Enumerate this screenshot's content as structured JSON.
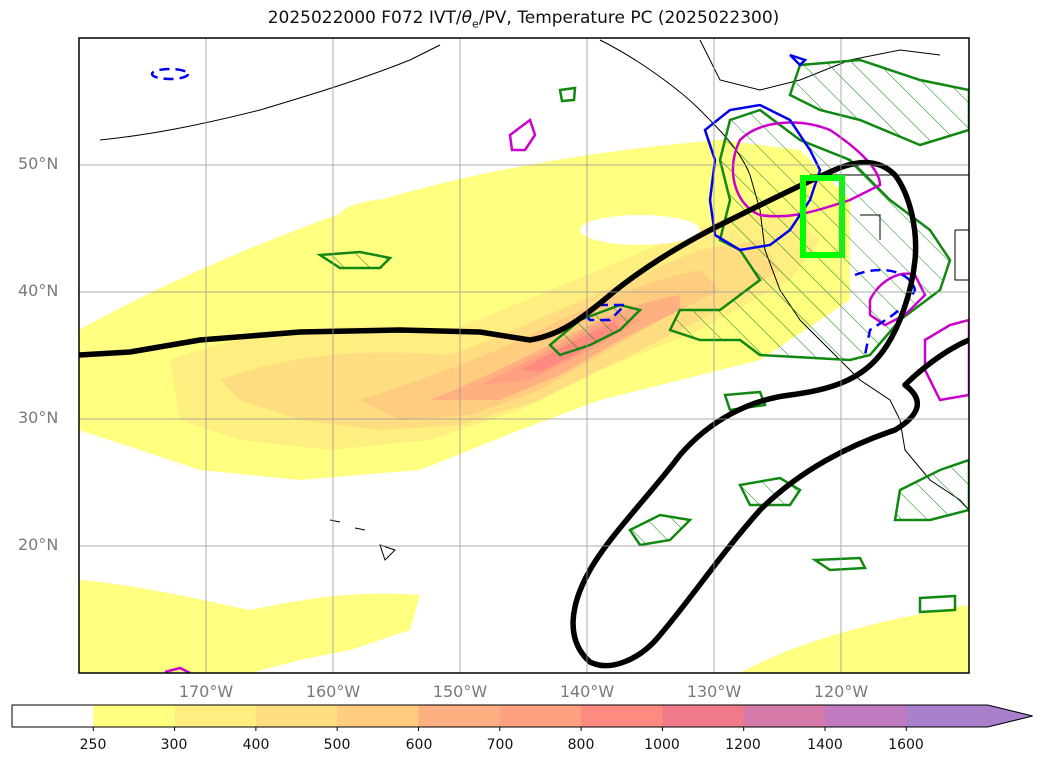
{
  "title_main": "2025022000 F072 IVT/",
  "title_theta": "θ",
  "title_sub": "e",
  "title_rest": "/PV, Temperature PC (2025022300)",
  "lat_labels": [
    "50°N",
    "40°N",
    "30°N",
    "20°N"
  ],
  "lon_labels": [
    "170°W",
    "160°W",
    "150°W",
    "140°W",
    "130°W",
    "120°W"
  ],
  "colorbar": {
    "ticks": [
      "250",
      "300",
      "400",
      "500",
      "600",
      "700",
      "800",
      "1000",
      "1200",
      "1400",
      "1600"
    ],
    "colors": [
      "#ffffff",
      "#ffff80",
      "#ffee80",
      "#ffdd80",
      "#ffcc80",
      "#ffb080",
      "#ffa080",
      "#ff8a80",
      "#ee7a8a",
      "#d67aaa",
      "#c07ac0",
      "#a880cc"
    ]
  },
  "legend_colors": {
    "box": "#00ff00",
    "pv_contour": "#0000ee",
    "theta_contour": "#cc00cc",
    "hatch_contour": "#118811",
    "temp_pc": "#000000"
  }
}
